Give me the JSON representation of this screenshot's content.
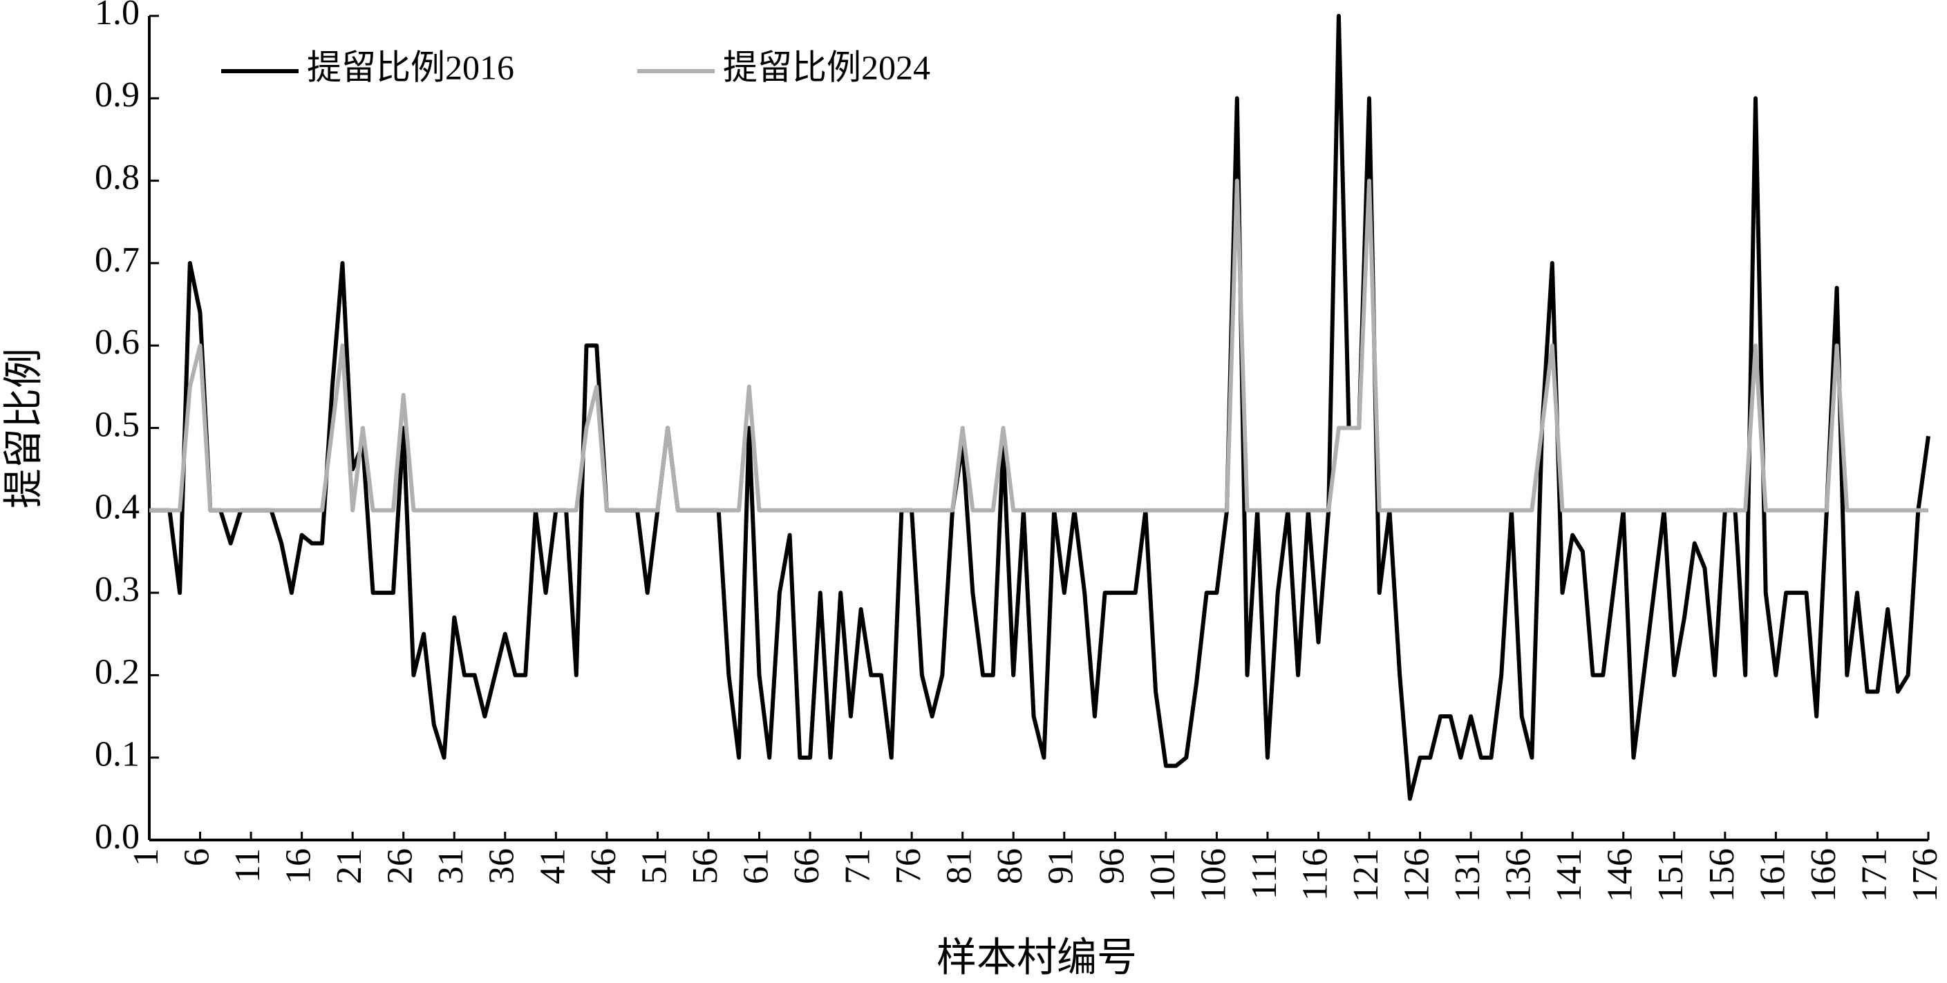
{
  "chart_data": {
    "type": "line",
    "xlabel": "样本村编号",
    "ylabel": "提留比例",
    "x": [
      1,
      2,
      3,
      4,
      5,
      6,
      7,
      8,
      9,
      10,
      11,
      12,
      13,
      14,
      15,
      16,
      17,
      18,
      19,
      20,
      21,
      22,
      23,
      24,
      25,
      26,
      27,
      28,
      29,
      30,
      31,
      32,
      33,
      34,
      35,
      36,
      37,
      38,
      39,
      40,
      41,
      42,
      43,
      44,
      45,
      46,
      47,
      48,
      49,
      50,
      51,
      52,
      53,
      54,
      55,
      56,
      57,
      58,
      59,
      60,
      61,
      62,
      63,
      64,
      65,
      66,
      67,
      68,
      69,
      70,
      71,
      72,
      73,
      74,
      75,
      76,
      77,
      78,
      79,
      80,
      81,
      82,
      83,
      84,
      85,
      86,
      87,
      88,
      89,
      90,
      91,
      92,
      93,
      94,
      95,
      96,
      97,
      98,
      99,
      100,
      101,
      102,
      103,
      104,
      105,
      106,
      107,
      108,
      109,
      110,
      111,
      112,
      113,
      114,
      115,
      116,
      117,
      118,
      119,
      120,
      121,
      122,
      123,
      124,
      125,
      126,
      127,
      128,
      129,
      130,
      131,
      132,
      133,
      134,
      135,
      136,
      137,
      138,
      139,
      140,
      141,
      142,
      143,
      144,
      145,
      146,
      147,
      148,
      149,
      150,
      151,
      152,
      153,
      154,
      155,
      156,
      157,
      158,
      159,
      160,
      161,
      162,
      163,
      164,
      165,
      166,
      167,
      168,
      169,
      170,
      171,
      172,
      173,
      174,
      175,
      176
    ],
    "series": [
      {
        "name": "提留比例2016",
        "color": "#000000",
        "values": [
          0.4,
          0.4,
          0.4,
          0.3,
          0.7,
          0.64,
          0.4,
          0.4,
          0.36,
          0.4,
          0.4,
          0.4,
          0.4,
          0.36,
          0.3,
          0.37,
          0.36,
          0.36,
          0.55,
          0.7,
          0.45,
          0.48,
          0.3,
          0.3,
          0.3,
          0.5,
          0.2,
          0.25,
          0.14,
          0.1,
          0.27,
          0.2,
          0.2,
          0.15,
          0.2,
          0.25,
          0.2,
          0.2,
          0.4,
          0.3,
          0.4,
          0.4,
          0.2,
          0.6,
          0.6,
          0.4,
          0.4,
          0.4,
          0.4,
          0.3,
          0.4,
          0.5,
          0.4,
          0.4,
          0.4,
          0.4,
          0.4,
          0.2,
          0.1,
          0.5,
          0.2,
          0.1,
          0.3,
          0.37,
          0.1,
          0.1,
          0.3,
          0.1,
          0.3,
          0.15,
          0.28,
          0.2,
          0.2,
          0.1,
          0.4,
          0.4,
          0.2,
          0.15,
          0.2,
          0.4,
          0.48,
          0.3,
          0.2,
          0.2,
          0.48,
          0.2,
          0.4,
          0.15,
          0.1,
          0.4,
          0.3,
          0.4,
          0.3,
          0.15,
          0.3,
          0.3,
          0.3,
          0.3,
          0.4,
          0.18,
          0.09,
          0.09,
          0.1,
          0.19,
          0.3,
          0.3,
          0.4,
          0.9,
          0.2,
          0.4,
          0.1,
          0.3,
          0.4,
          0.2,
          0.4,
          0.24,
          0.4,
          1.0,
          0.5,
          0.5,
          0.9,
          0.3,
          0.4,
          0.2,
          0.05,
          0.1,
          0.1,
          0.15,
          0.15,
          0.1,
          0.15,
          0.1,
          0.1,
          0.2,
          0.4,
          0.15,
          0.1,
          0.5,
          0.7,
          0.3,
          0.37,
          0.35,
          0.2,
          0.2,
          0.3,
          0.4,
          0.1,
          0.2,
          0.3,
          0.4,
          0.2,
          0.27,
          0.36,
          0.33,
          0.2,
          0.4,
          0.4,
          0.2,
          0.9,
          0.3,
          0.2,
          0.3,
          0.3,
          0.3,
          0.15,
          0.4,
          0.67,
          0.2,
          0.3,
          0.18,
          0.18,
          0.28,
          0.18,
          0.2,
          0.4,
          0.49
        ]
      },
      {
        "name": "提留比例2024",
        "color": "#b0b0b0",
        "values": [
          0.4,
          0.4,
          0.4,
          0.4,
          0.55,
          0.6,
          0.4,
          0.4,
          0.4,
          0.4,
          0.4,
          0.4,
          0.4,
          0.4,
          0.4,
          0.4,
          0.4,
          0.4,
          0.5,
          0.6,
          0.4,
          0.5,
          0.4,
          0.4,
          0.4,
          0.54,
          0.4,
          0.4,
          0.4,
          0.4,
          0.4,
          0.4,
          0.4,
          0.4,
          0.4,
          0.4,
          0.4,
          0.4,
          0.4,
          0.4,
          0.4,
          0.4,
          0.4,
          0.5,
          0.55,
          0.4,
          0.4,
          0.4,
          0.4,
          0.4,
          0.4,
          0.5,
          0.4,
          0.4,
          0.4,
          0.4,
          0.4,
          0.4,
          0.4,
          0.55,
          0.4,
          0.4,
          0.4,
          0.4,
          0.4,
          0.4,
          0.4,
          0.4,
          0.4,
          0.4,
          0.4,
          0.4,
          0.4,
          0.4,
          0.4,
          0.4,
          0.4,
          0.4,
          0.4,
          0.4,
          0.5,
          0.4,
          0.4,
          0.4,
          0.5,
          0.4,
          0.4,
          0.4,
          0.4,
          0.4,
          0.4,
          0.4,
          0.4,
          0.4,
          0.4,
          0.4,
          0.4,
          0.4,
          0.4,
          0.4,
          0.4,
          0.4,
          0.4,
          0.4,
          0.4,
          0.4,
          0.4,
          0.8,
          0.4,
          0.4,
          0.4,
          0.4,
          0.4,
          0.4,
          0.4,
          0.4,
          0.4,
          0.5,
          0.5,
          0.5,
          0.8,
          0.4,
          0.4,
          0.4,
          0.4,
          0.4,
          0.4,
          0.4,
          0.4,
          0.4,
          0.4,
          0.4,
          0.4,
          0.4,
          0.4,
          0.4,
          0.4,
          0.5,
          0.6,
          0.4,
          0.4,
          0.4,
          0.4,
          0.4,
          0.4,
          0.4,
          0.4,
          0.4,
          0.4,
          0.4,
          0.4,
          0.4,
          0.4,
          0.4,
          0.4,
          0.4,
          0.4,
          0.4,
          0.6,
          0.4,
          0.4,
          0.4,
          0.4,
          0.4,
          0.4,
          0.4,
          0.6,
          0.4,
          0.4,
          0.4,
          0.4,
          0.4,
          0.4,
          0.4,
          0.4,
          0.4
        ]
      }
    ],
    "xlim": [
      1,
      176
    ],
    "xticks": [
      1,
      6,
      11,
      16,
      21,
      26,
      31,
      36,
      41,
      46,
      51,
      56,
      61,
      66,
      71,
      76,
      81,
      86,
      91,
      96,
      101,
      106,
      111,
      116,
      121,
      126,
      131,
      136,
      141,
      146,
      151,
      156,
      161,
      166,
      171,
      176
    ],
    "ylim": [
      0,
      1
    ],
    "yticks": [
      {
        "value": 0,
        "label": "0.0"
      },
      0.1,
      0.2,
      0.3,
      0.4,
      0.5,
      0.6,
      0.7,
      0.8,
      0.9,
      {
        "value": 1,
        "label": "1.0"
      }
    ],
    "grid": false,
    "legend": "upper left"
  }
}
